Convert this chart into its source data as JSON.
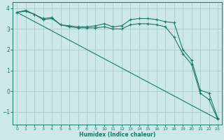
{
  "xlabel": "Humidex (Indice chaleur)",
  "bg_color": "#cce8e8",
  "grid_color": "#aacccc",
  "line_color": "#1a7a6a",
  "xlim": [
    -0.5,
    23.5
  ],
  "ylim": [
    -1.6,
    4.3
  ],
  "yticks": [
    -1,
    0,
    1,
    2,
    3,
    4
  ],
  "xticks": [
    0,
    1,
    2,
    3,
    4,
    5,
    6,
    7,
    8,
    9,
    10,
    11,
    12,
    13,
    14,
    15,
    16,
    17,
    18,
    19,
    20,
    21,
    22,
    23
  ],
  "series": [
    {
      "x": [
        0,
        1,
        2,
        3,
        4,
        5,
        6,
        7,
        8,
        9,
        10,
        11,
        12,
        13,
        14,
        15,
        16,
        17,
        18,
        19,
        20,
        21,
        22,
        23
      ],
      "y": [
        3.8,
        3.9,
        3.7,
        3.5,
        3.55,
        3.2,
        3.15,
        3.1,
        3.1,
        3.15,
        3.25,
        3.1,
        3.15,
        3.45,
        3.5,
        3.5,
        3.45,
        3.35,
        3.3,
        2.0,
        1.5,
        0.05,
        -0.1,
        -1.3
      ],
      "marker": "+"
    },
    {
      "x": [
        0,
        1,
        2,
        3,
        4,
        5,
        6,
        7,
        8,
        9,
        10,
        11,
        12,
        13,
        14,
        15,
        16,
        17,
        18,
        19,
        20,
        21,
        22,
        23
      ],
      "y": [
        3.8,
        3.85,
        3.7,
        3.45,
        3.5,
        3.2,
        3.1,
        3.05,
        3.05,
        3.05,
        3.1,
        3.0,
        3.0,
        3.2,
        3.25,
        3.25,
        3.2,
        3.1,
        2.6,
        1.8,
        1.3,
        -0.1,
        -0.4,
        -1.35
      ],
      "marker": "+"
    },
    {
      "x": [
        0,
        23
      ],
      "y": [
        3.8,
        -1.35
      ],
      "marker": null
    }
  ]
}
